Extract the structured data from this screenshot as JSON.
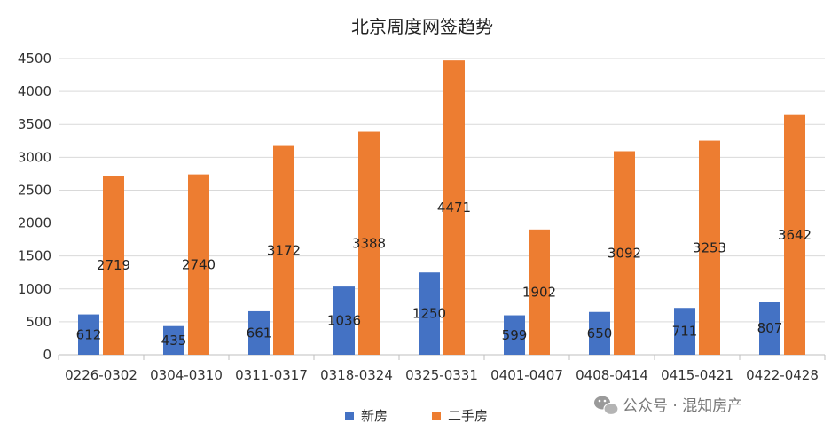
{
  "chart_data": {
    "type": "bar",
    "title": "北京周度网签趋势",
    "categories": [
      "0226-0302",
      "0304-0310",
      "0311-0317",
      "0318-0324",
      "0325-0331",
      "0401-0407",
      "0408-0414",
      "0415-0421",
      "0422-0428"
    ],
    "series": [
      {
        "name": "新房",
        "color": "#4472c4",
        "values": [
          612,
          435,
          661,
          1036,
          1250,
          599,
          650,
          711,
          807
        ]
      },
      {
        "name": "二手房",
        "color": "#ed7d31",
        "values": [
          2719,
          2740,
          3172,
          3388,
          4471,
          1902,
          3092,
          3253,
          3642
        ]
      }
    ],
    "ylim": [
      0,
      4500
    ],
    "yticks": [
      0,
      500,
      1000,
      1500,
      2000,
      2500,
      3000,
      3500,
      4000,
      4500
    ],
    "grid": true,
    "legend": "bottom"
  },
  "watermark": "公众号 · 混知房产"
}
